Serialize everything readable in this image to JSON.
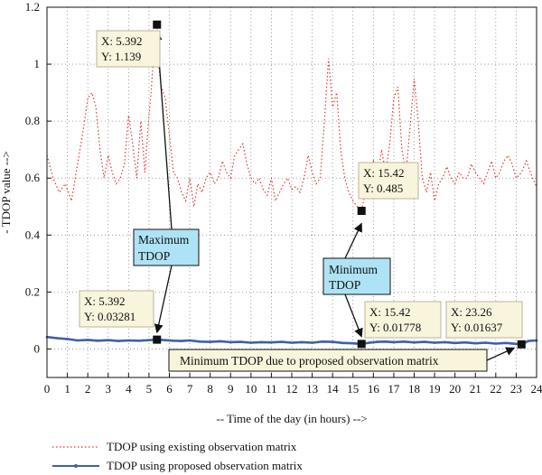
{
  "chart_data": {
    "type": "line",
    "xlabel": "-- Time of the day (in hours) -->",
    "ylabel": "- TDOP value -->",
    "xlim": [
      0,
      24
    ],
    "ylim": [
      -0.1,
      1.2
    ],
    "x_ticks": [
      0,
      1,
      2,
      3,
      4,
      5,
      6,
      7,
      8,
      9,
      10,
      11,
      12,
      13,
      14,
      15,
      16,
      17,
      18,
      19,
      20,
      21,
      22,
      23,
      24
    ],
    "y_ticks": [
      0,
      0.2,
      0.4,
      0.6,
      0.8,
      1,
      1.2
    ],
    "y_tick_labels": [
      "0",
      "0.2",
      "0.4",
      "0.6",
      "0.8",
      "1",
      "1.2"
    ],
    "grid": true,
    "legend_position": "bottom-left, below plot",
    "series": [
      {
        "name": "TDOP using existing observation matrix",
        "color": "#e8332a",
        "style": "dotted",
        "x": [
          0,
          0.3,
          0.6,
          0.9,
          1.2,
          1.5,
          1.8,
          2.0,
          2.2,
          2.4,
          2.6,
          2.8,
          3.0,
          3.2,
          3.4,
          3.6,
          3.8,
          4.0,
          4.2,
          4.4,
          4.6,
          4.8,
          5.0,
          5.1,
          5.2,
          5.392,
          5.5,
          5.6,
          5.8,
          6.0,
          6.2,
          6.4,
          6.6,
          6.8,
          7.0,
          7.2,
          7.4,
          7.6,
          7.8,
          8.0,
          8.2,
          8.4,
          8.6,
          8.8,
          9.0,
          9.2,
          9.4,
          9.6,
          9.8,
          10.0,
          10.2,
          10.4,
          10.6,
          10.8,
          11.0,
          11.2,
          11.4,
          11.6,
          11.8,
          12.0,
          12.2,
          12.4,
          12.6,
          12.8,
          13.0,
          13.2,
          13.4,
          13.6,
          13.8,
          14.0,
          14.2,
          14.4,
          14.6,
          14.8,
          15.0,
          15.2,
          15.42,
          15.6,
          15.8,
          16.0,
          16.2,
          16.4,
          16.6,
          16.8,
          17.0,
          17.2,
          17.4,
          17.6,
          17.8,
          18.0,
          18.2,
          18.4,
          18.6,
          18.8,
          19.0,
          19.2,
          19.4,
          19.6,
          19.8,
          20.0,
          20.2,
          20.4,
          20.6,
          20.8,
          21.0,
          21.2,
          21.4,
          21.6,
          21.8,
          22.0,
          22.2,
          22.4,
          22.6,
          22.8,
          23.0,
          23.26,
          23.5,
          23.8,
          24.0
        ],
        "y": [
          0.68,
          0.6,
          0.55,
          0.58,
          0.52,
          0.65,
          0.78,
          0.88,
          0.9,
          0.85,
          0.7,
          0.6,
          0.68,
          0.62,
          0.58,
          0.6,
          0.65,
          0.82,
          0.72,
          0.6,
          0.8,
          0.62,
          0.82,
          0.9,
          1.0,
          1.139,
          0.98,
          0.92,
          0.88,
          0.75,
          0.62,
          0.6,
          0.55,
          0.52,
          0.6,
          0.5,
          0.58,
          0.55,
          0.6,
          0.62,
          0.58,
          0.6,
          0.66,
          0.62,
          0.6,
          0.68,
          0.7,
          0.72,
          0.65,
          0.6,
          0.58,
          0.6,
          0.56,
          0.54,
          0.6,
          0.52,
          0.55,
          0.58,
          0.6,
          0.56,
          0.57,
          0.55,
          0.6,
          0.68,
          0.62,
          0.58,
          0.6,
          0.8,
          1.02,
          0.85,
          0.9,
          0.7,
          0.6,
          0.55,
          0.52,
          0.5,
          0.485,
          0.55,
          0.62,
          0.66,
          0.6,
          0.7,
          0.62,
          0.72,
          0.88,
          0.92,
          0.7,
          0.62,
          0.78,
          0.95,
          0.8,
          0.6,
          0.55,
          0.62,
          0.52,
          0.58,
          0.6,
          0.64,
          0.6,
          0.58,
          0.62,
          0.6,
          0.6,
          0.65,
          0.62,
          0.6,
          0.58,
          0.62,
          0.66,
          0.6,
          0.62,
          0.66,
          0.68,
          0.65,
          0.6,
          0.62,
          0.66,
          0.6,
          0.57
        ]
      },
      {
        "name": "TDOP using proposed observation matrix",
        "color": "#3f5fa8",
        "style": "solid-marker",
        "x": [
          0,
          0.5,
          1,
          1.5,
          2,
          2.5,
          3,
          3.5,
          4,
          4.5,
          5,
          5.392,
          5.8,
          6.2,
          6.6,
          7,
          7.5,
          8,
          8.5,
          9,
          9.5,
          10,
          10.5,
          11,
          11.5,
          12,
          12.5,
          13,
          13.5,
          14,
          14.5,
          15,
          15.42,
          15.8,
          16.2,
          16.6,
          17,
          17.5,
          18,
          18.5,
          19,
          19.5,
          20,
          20.5,
          21,
          21.5,
          22,
          22.5,
          23,
          23.26,
          23.6,
          24
        ],
        "y": [
          0.042,
          0.038,
          0.035,
          0.03,
          0.032,
          0.029,
          0.031,
          0.028,
          0.03,
          0.029,
          0.031,
          0.03281,
          0.031,
          0.029,
          0.028,
          0.03,
          0.026,
          0.025,
          0.027,
          0.024,
          0.025,
          0.022,
          0.024,
          0.023,
          0.025,
          0.022,
          0.024,
          0.022,
          0.026,
          0.025,
          0.021,
          0.02,
          0.01778,
          0.022,
          0.025,
          0.026,
          0.024,
          0.026,
          0.023,
          0.025,
          0.022,
          0.024,
          0.021,
          0.023,
          0.02,
          0.022,
          0.019,
          0.021,
          0.018,
          0.01637,
          0.028,
          0.03
        ]
      }
    ],
    "data_tips": [
      {
        "x": 5.392,
        "y": 1.139,
        "x_text": "X: 5.392",
        "y_text": "Y: 1.139"
      },
      {
        "x": 15.42,
        "y": 0.485,
        "x_text": "X: 15.42",
        "y_text": "Y: 0.485"
      },
      {
        "x": 5.392,
        "y": 0.03281,
        "x_text": "X: 5.392",
        "y_text": "Y: 0.03281"
      },
      {
        "x": 15.42,
        "y": 0.01778,
        "x_text": "X: 15.42",
        "y_text": "Y: 0.01778"
      },
      {
        "x": 23.26,
        "y": 0.01637,
        "x_text": "X: 23.26",
        "y_text": "Y: 0.01637"
      }
    ],
    "annotations": [
      {
        "lines": [
          "Maximum",
          "TDOP"
        ],
        "color": "#aee3f5"
      },
      {
        "lines": [
          "Minimum",
          "TDOP"
        ],
        "color": "#aee3f5"
      },
      {
        "lines": [
          "Minimum TDOP due to proposed observation matrix"
        ],
        "color": "#f8f5dc"
      }
    ]
  }
}
